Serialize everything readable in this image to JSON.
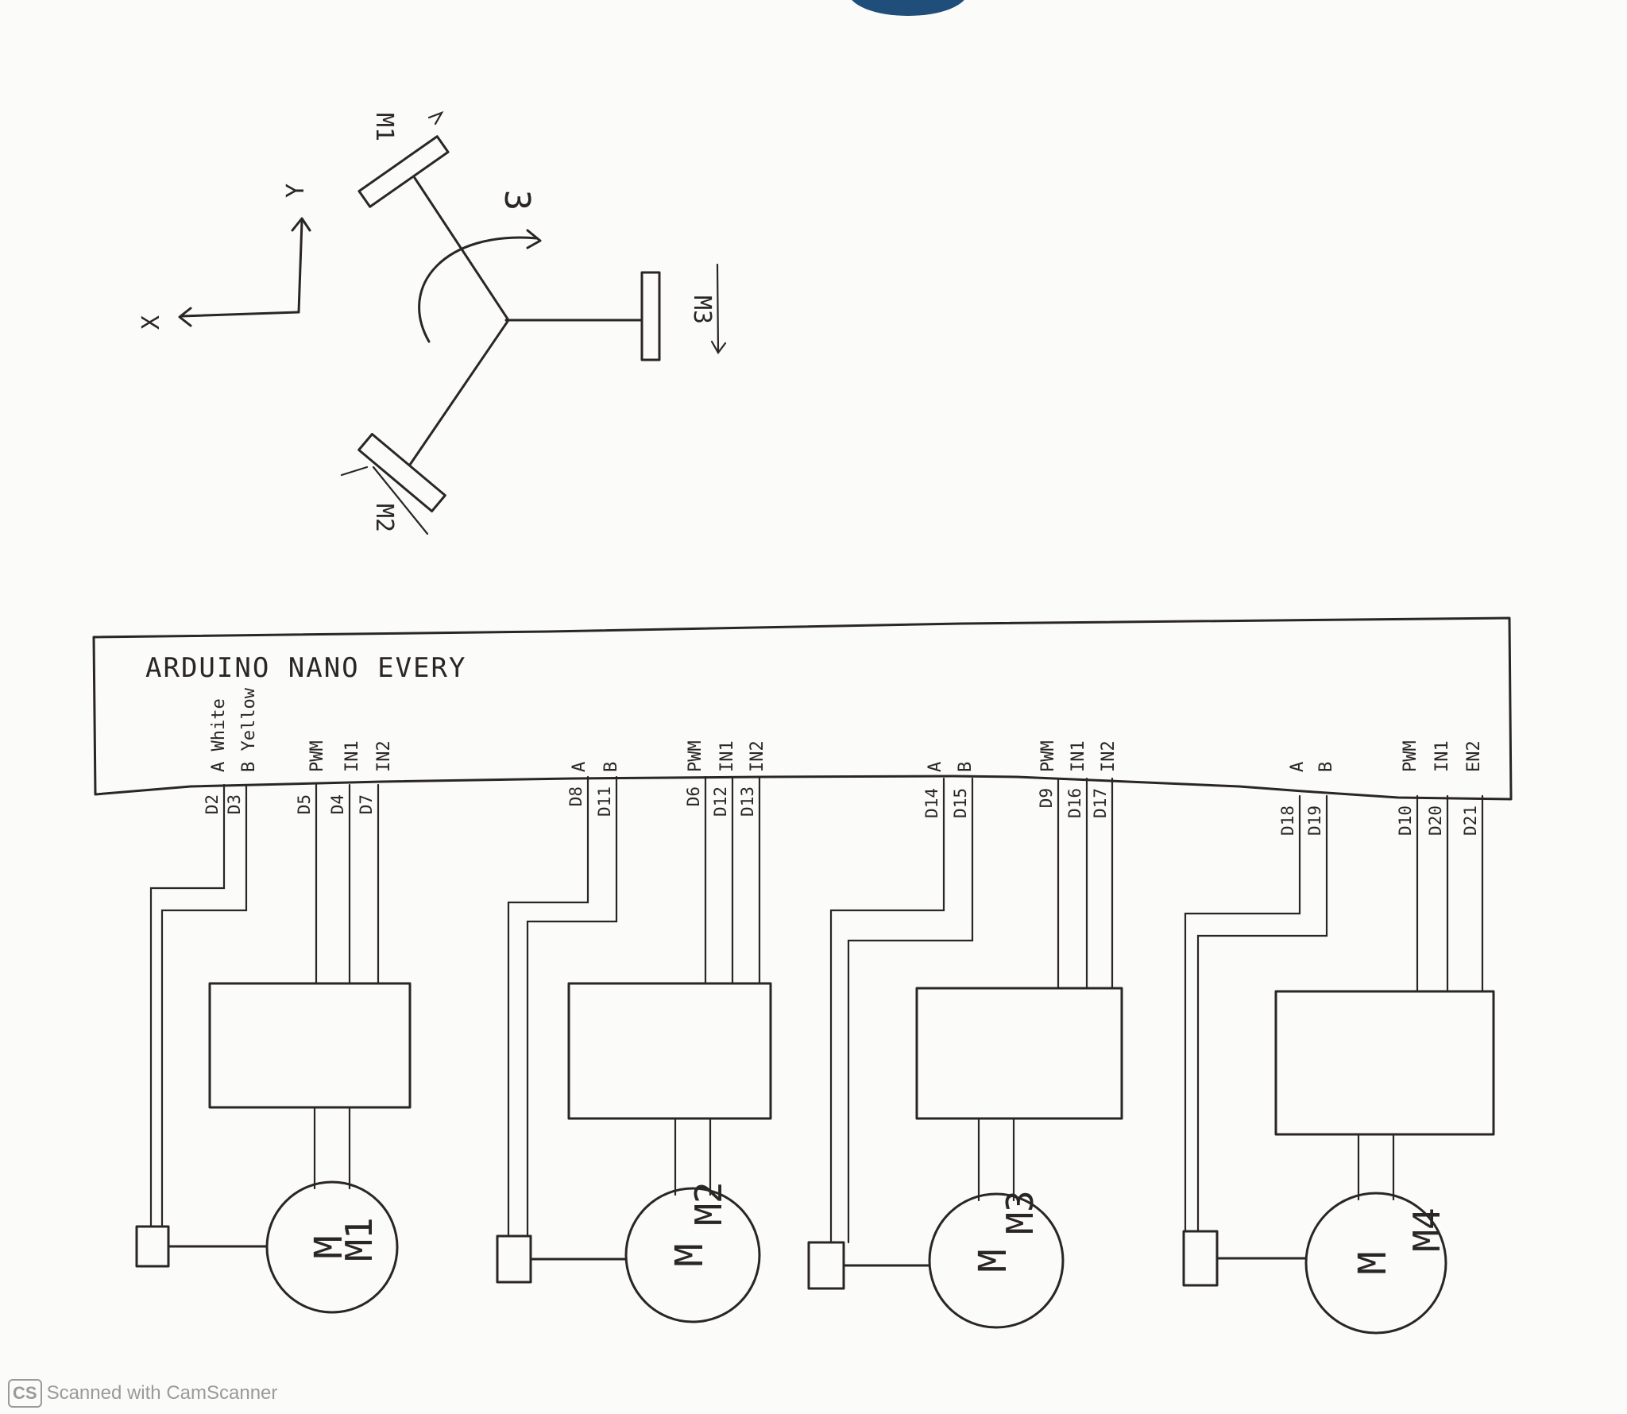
{
  "arrangement": {
    "axes": {
      "x": "X",
      "y": "Y"
    },
    "rotation": "3",
    "wheels": [
      "M1",
      "M2",
      "M3"
    ]
  },
  "board": {
    "title": "ARDUINO NANO EVERY"
  },
  "groups": [
    {
      "motor": "M1",
      "symbol": "M",
      "encoder_signals": [
        "A White",
        "B Yellow"
      ],
      "encoder_pins": [
        "D2",
        "D3"
      ],
      "driver_signals": [
        "PWM",
        "IN1",
        "IN2"
      ],
      "driver_pins": [
        "D5",
        "D4",
        "D7"
      ]
    },
    {
      "motor": "M2",
      "symbol": "M",
      "encoder_signals": [
        "A",
        "B"
      ],
      "encoder_pins": [
        "D8",
        "D11"
      ],
      "driver_signals": [
        "PWM",
        "IN1",
        "IN2"
      ],
      "driver_pins": [
        "D6",
        "D12",
        "D13"
      ]
    },
    {
      "motor": "M3",
      "symbol": "M",
      "encoder_signals": [
        "A",
        "B"
      ],
      "encoder_pins": [
        "D14",
        "D15"
      ],
      "driver_signals": [
        "PWM",
        "IN1",
        "IN2"
      ],
      "driver_pins": [
        "D9",
        "D16",
        "D17"
      ]
    },
    {
      "motor": "M4",
      "symbol": "M",
      "encoder_signals": [
        "A",
        "B"
      ],
      "encoder_pins": [
        "D18",
        "D19"
      ],
      "driver_signals": [
        "PWM",
        "IN1",
        "EN2"
      ],
      "driver_pins": [
        "D10",
        "D20",
        "D21"
      ]
    }
  ],
  "watermark": {
    "badge": "CS",
    "text": "Scanned with CamScanner"
  },
  "colors": {
    "ink": "#2a2624",
    "paper": "#fbfbf9",
    "blob": "#1f4e7a"
  }
}
